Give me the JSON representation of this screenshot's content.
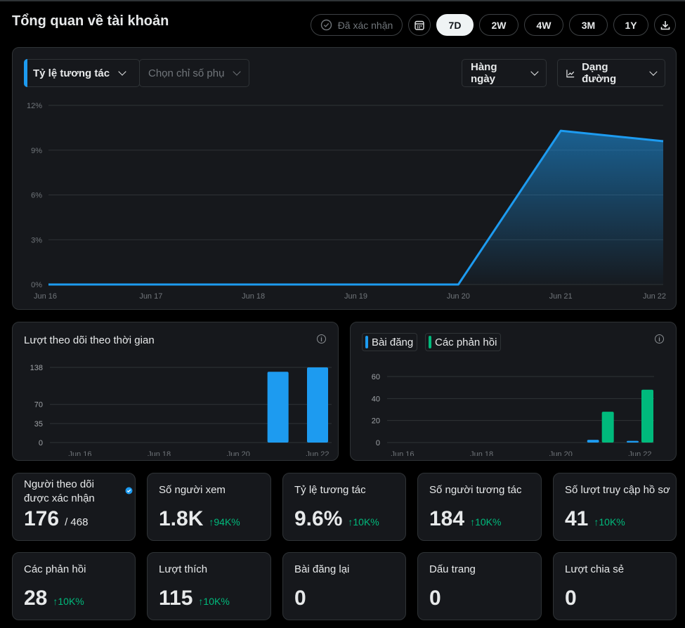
{
  "header": {
    "title": "Tổng quan về tài khoản",
    "verified_label": "Đã xác nhận",
    "ranges": [
      "7D",
      "2W",
      "4W",
      "3M",
      "1Y"
    ],
    "active_range": "7D"
  },
  "main_chart": {
    "metric_label": "Tỷ lệ tương tác",
    "secondary_placeholder": "Chọn chỉ số phụ",
    "interval_label": "Hàng ngày",
    "chart_type_label": "Dạng đường"
  },
  "followers_chart": {
    "title": "Lượt theo dõi theo thời gian"
  },
  "posts_chart": {
    "legend": [
      "Bài đăng",
      "Các phản hồi"
    ]
  },
  "chart_data": [
    {
      "type": "area",
      "x": [
        "Jun 16",
        "Jun 17",
        "Jun 18",
        "Jun 19",
        "Jun 20",
        "Jun 21",
        "Jun 22"
      ],
      "values": [
        0,
        0,
        0,
        0,
        0,
        10.3,
        9.6
      ],
      "yticks": [
        "0%",
        "3%",
        "6%",
        "9%",
        "12%"
      ],
      "ylim": [
        0,
        12
      ],
      "color": "#1d9bf0"
    },
    {
      "type": "bar",
      "x": [
        "Jun 16",
        "Jun 17",
        "Jun 18",
        "Jun 19",
        "Jun 20",
        "Jun 21",
        "Jun 22"
      ],
      "xticks": [
        "Jun 16",
        "Jun 18",
        "Jun 20",
        "Jun 22"
      ],
      "values": [
        0,
        0,
        0,
        0,
        0,
        130,
        138
      ],
      "yticks": [
        0,
        35,
        70,
        138
      ],
      "ylim": [
        0,
        138
      ],
      "color": "#1d9bf0"
    },
    {
      "type": "bar",
      "x": [
        "Jun 16",
        "Jun 17",
        "Jun 18",
        "Jun 19",
        "Jun 20",
        "Jun 21",
        "Jun 22"
      ],
      "xticks": [
        "Jun 16",
        "Jun 18",
        "Jun 20",
        "Jun 22"
      ],
      "series": [
        {
          "name": "Bài đăng",
          "values": [
            0,
            0,
            0,
            0,
            0,
            2.5,
            1.5
          ],
          "color": "#1d9bf0"
        },
        {
          "name": "Các phản hồi",
          "values": [
            0,
            0,
            0,
            0,
            0,
            28,
            48
          ],
          "color": "#00ba7c"
        }
      ],
      "yticks": [
        0,
        20,
        40,
        60
      ],
      "ylim": [
        0,
        60
      ]
    }
  ],
  "stats": [
    {
      "label": "Người theo dõi được xác nhận",
      "value": "176",
      "sub": "/ 468",
      "change": "",
      "verified": true
    },
    {
      "label": "Số người xem",
      "value": "1.8K",
      "sub": "",
      "change": "↑94K%"
    },
    {
      "label": "Tỷ lệ tương tác",
      "value": "9.6%",
      "sub": "",
      "change": "↑10K%"
    },
    {
      "label": "Số người tương tác",
      "value": "184",
      "sub": "",
      "change": "↑10K%"
    },
    {
      "label": "Số lượt truy cập hồ sơ",
      "value": "41",
      "sub": "",
      "change": "↑10K%"
    },
    {
      "label": "Các phản hồi",
      "value": "28",
      "sub": "",
      "change": "↑10K%"
    },
    {
      "label": "Lượt thích",
      "value": "115",
      "sub": "",
      "change": "↑10K%"
    },
    {
      "label": "Bài đăng lại",
      "value": "0",
      "sub": "",
      "change": ""
    },
    {
      "label": "Dấu trang",
      "value": "0",
      "sub": "",
      "change": ""
    },
    {
      "label": "Lượt chia sẻ",
      "value": "0",
      "sub": "",
      "change": ""
    }
  ],
  "colors": {
    "accent": "#1d9bf0",
    "positive": "#00ba7c",
    "card": "#16181c"
  }
}
